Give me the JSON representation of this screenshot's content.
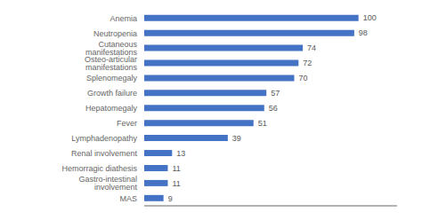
{
  "chart_data": {
    "type": "bar",
    "orientation": "horizontal",
    "categories": [
      "MAS",
      "Gastro-intestinal involvement",
      "Hemorragic diathesis",
      "Renal involvement",
      "Lymphadenopathy",
      "Fever",
      "Hepatomegaly",
      "Growth failure",
      "Splenomegaly",
      "Osteo-articular manifestations",
      "Cutaneous manifestations",
      "Neutropenia",
      "Anemia"
    ],
    "values": [
      9,
      11,
      11,
      13,
      39,
      51,
      56,
      57,
      70,
      72,
      74,
      98,
      100
    ],
    "color": "#4472c4",
    "xlim": [
      0,
      118
    ],
    "data_labels": true,
    "tick_labels": "y",
    "grid": false
  }
}
